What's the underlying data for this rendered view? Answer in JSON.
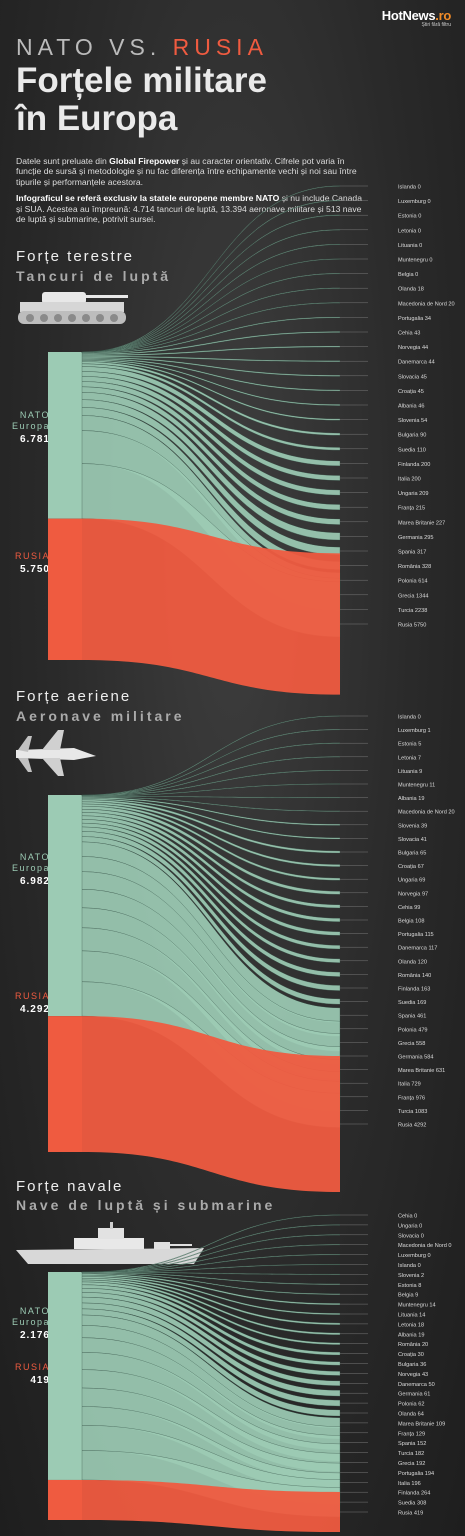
{
  "header": {
    "logo": "HotNews",
    "logo_dot": ".ro",
    "logo_tagline": "Știri fără filtru",
    "title_line1_a": "NATO VS. ",
    "title_line1_b": "RUSIA",
    "title_line2": "Forțele militare",
    "title_line3": "în Europa"
  },
  "intro": {
    "p1_a": "Datele sunt preluate din ",
    "p1_bold": "Global Firepower",
    "p1_b": " și au caracter orientativ. Cifrele pot varia în funcție de sursă și metodologie și nu fac diferența între echipamente vechi și noi sau între tipurile și performanțele acestora.",
    "p2_bold": "Infograficul se referă exclusiv la statele europene membre NATO",
    "p2_b": " și nu include Canada și SUA. Acestea au împreună: 4.714 tancuri de luptă, 13.394 aeronave militare și 513 nave de luptă și submarine, potrivit sursei."
  },
  "colors": {
    "nato": "#9ccbb4",
    "russia": "#ef5b40",
    "background": "#2c2c2c",
    "label": "#dddddd"
  },
  "icons": [
    "tank-icon",
    "fighter-jet-icon",
    "warship-icon"
  ],
  "sections": [
    {
      "key": "land",
      "title": "Forțe terestre",
      "subtitle": "Tancuri de luptă",
      "nato_label_1": "NATO",
      "nato_label_2": "Europa",
      "nato_total": "6.781",
      "russia_label": "RUSIA",
      "russia_total": "5.750"
    },
    {
      "key": "air",
      "title": "Forțe aeriene",
      "subtitle": "Aeronave militare",
      "nato_label_1": "NATO",
      "nato_label_2": "Europa",
      "nato_total": "6.982",
      "russia_label": "RUSIA",
      "russia_total": "4.292"
    },
    {
      "key": "naval",
      "title": "Forțe navale",
      "subtitle": "Nave de luptă și submarine",
      "nato_label_1": "NATO",
      "nato_label_2": "Europa",
      "nato_total": "2.176",
      "russia_label": "RUSIA",
      "russia_total": "419"
    }
  ],
  "chart_data": [
    {
      "type": "sankey",
      "title": "Forțe terestre",
      "subtitle": "Tancuri de luptă",
      "sources": [
        {
          "name": "NATO Europa",
          "value": 6781
        },
        {
          "name": "RUSIA",
          "value": 5750
        }
      ],
      "flows": [
        {
          "name": "Islanda",
          "value": 0
        },
        {
          "name": "Luxemburg",
          "value": 0
        },
        {
          "name": "Estonia",
          "value": 0
        },
        {
          "name": "Letonia",
          "value": 0
        },
        {
          "name": "Lituania",
          "value": 0
        },
        {
          "name": "Muntenegru",
          "value": 0
        },
        {
          "name": "Belgia",
          "value": 0
        },
        {
          "name": "Olanda",
          "value": 18
        },
        {
          "name": "Macedonia de Nord",
          "value": 20
        },
        {
          "name": "Portugalia",
          "value": 34
        },
        {
          "name": "Cehia",
          "value": 43
        },
        {
          "name": "Norvegia",
          "value": 44
        },
        {
          "name": "Danemarca",
          "value": 44
        },
        {
          "name": "Slovacia",
          "value": 45
        },
        {
          "name": "Croația",
          "value": 45
        },
        {
          "name": "Albania",
          "value": 46
        },
        {
          "name": "Slovenia",
          "value": 54
        },
        {
          "name": "Bulgaria",
          "value": 90
        },
        {
          "name": "Suedia",
          "value": 110
        },
        {
          "name": "Finlanda",
          "value": 200
        },
        {
          "name": "Italia",
          "value": 200
        },
        {
          "name": "Ungaria",
          "value": 209
        },
        {
          "name": "Franța",
          "value": 215
        },
        {
          "name": "Marea Britanie",
          "value": 227
        },
        {
          "name": "Germania",
          "value": 295
        },
        {
          "name": "Spania",
          "value": 317
        },
        {
          "name": "România",
          "value": 328
        },
        {
          "name": "Polonia",
          "value": 614
        },
        {
          "name": "Grecia",
          "value": 1344
        },
        {
          "name": "Turcia",
          "value": 2238
        },
        {
          "name": "Rusia",
          "value": 5750,
          "source": "RUSIA"
        }
      ]
    },
    {
      "type": "sankey",
      "title": "Forțe aeriene",
      "subtitle": "Aeronave militare",
      "sources": [
        {
          "name": "NATO Europa",
          "value": 6982
        },
        {
          "name": "RUSIA",
          "value": 4292
        }
      ],
      "flows": [
        {
          "name": "Islanda",
          "value": 0
        },
        {
          "name": "Luxemburg",
          "value": 1
        },
        {
          "name": "Estonia",
          "value": 5
        },
        {
          "name": "Letonia",
          "value": 7
        },
        {
          "name": "Lituania",
          "value": 9
        },
        {
          "name": "Muntenegru",
          "value": 11
        },
        {
          "name": "Albania",
          "value": 19
        },
        {
          "name": "Macedonia de Nord",
          "value": 20
        },
        {
          "name": "Slovenia",
          "value": 39
        },
        {
          "name": "Slovacia",
          "value": 41
        },
        {
          "name": "Bulgaria",
          "value": 65
        },
        {
          "name": "Croația",
          "value": 67
        },
        {
          "name": "Ungaria",
          "value": 69
        },
        {
          "name": "Norvegia",
          "value": 97
        },
        {
          "name": "Cehia",
          "value": 99
        },
        {
          "name": "Belgia",
          "value": 108
        },
        {
          "name": "Portugalia",
          "value": 115
        },
        {
          "name": "Danemarca",
          "value": 117
        },
        {
          "name": "Olanda",
          "value": 120
        },
        {
          "name": "România",
          "value": 140
        },
        {
          "name": "Finlanda",
          "value": 163
        },
        {
          "name": "Suedia",
          "value": 169
        },
        {
          "name": "Spania",
          "value": 461
        },
        {
          "name": "Polonia",
          "value": 479
        },
        {
          "name": "Grecia",
          "value": 558
        },
        {
          "name": "Germania",
          "value": 584
        },
        {
          "name": "Marea Britanie",
          "value": 631
        },
        {
          "name": "Italia",
          "value": 729
        },
        {
          "name": "Franța",
          "value": 976
        },
        {
          "name": "Turcia",
          "value": 1083
        },
        {
          "name": "Rusia",
          "value": 4292,
          "source": "RUSIA"
        }
      ]
    },
    {
      "type": "sankey",
      "title": "Forțe navale",
      "subtitle": "Nave de luptă și submarine",
      "sources": [
        {
          "name": "NATO Europa",
          "value": 2176
        },
        {
          "name": "RUSIA",
          "value": 419
        }
      ],
      "flows": [
        {
          "name": "Cehia",
          "value": 0
        },
        {
          "name": "Ungaria",
          "value": 0
        },
        {
          "name": "Slovacia",
          "value": 0
        },
        {
          "name": "Macedonia de Nord",
          "value": 0
        },
        {
          "name": "Luxemburg",
          "value": 0
        },
        {
          "name": "Islanda",
          "value": 0
        },
        {
          "name": "Slovenia",
          "value": 2
        },
        {
          "name": "Estonia",
          "value": 8
        },
        {
          "name": "Belgia",
          "value": 9
        },
        {
          "name": "Muntenegru",
          "value": 14
        },
        {
          "name": "Lituania",
          "value": 14
        },
        {
          "name": "Letonia",
          "value": 18
        },
        {
          "name": "Albania",
          "value": 19
        },
        {
          "name": "România",
          "value": 20
        },
        {
          "name": "Croația",
          "value": 30
        },
        {
          "name": "Bulgaria",
          "value": 36
        },
        {
          "name": "Norvegia",
          "value": 43
        },
        {
          "name": "Danemarca",
          "value": 50
        },
        {
          "name": "Germania",
          "value": 61
        },
        {
          "name": "Polonia",
          "value": 62
        },
        {
          "name": "Olanda",
          "value": 64
        },
        {
          "name": "Marea Britanie",
          "value": 109
        },
        {
          "name": "Franța",
          "value": 129
        },
        {
          "name": "Spania",
          "value": 152
        },
        {
          "name": "Turcia",
          "value": 182
        },
        {
          "name": "Grecia",
          "value": 192
        },
        {
          "name": "Portugalia",
          "value": 194
        },
        {
          "name": "Italia",
          "value": 196
        },
        {
          "name": "Finlanda",
          "value": 264
        },
        {
          "name": "Suedia",
          "value": 308
        },
        {
          "name": "Rusia",
          "value": 419,
          "source": "RUSIA"
        }
      ]
    }
  ]
}
